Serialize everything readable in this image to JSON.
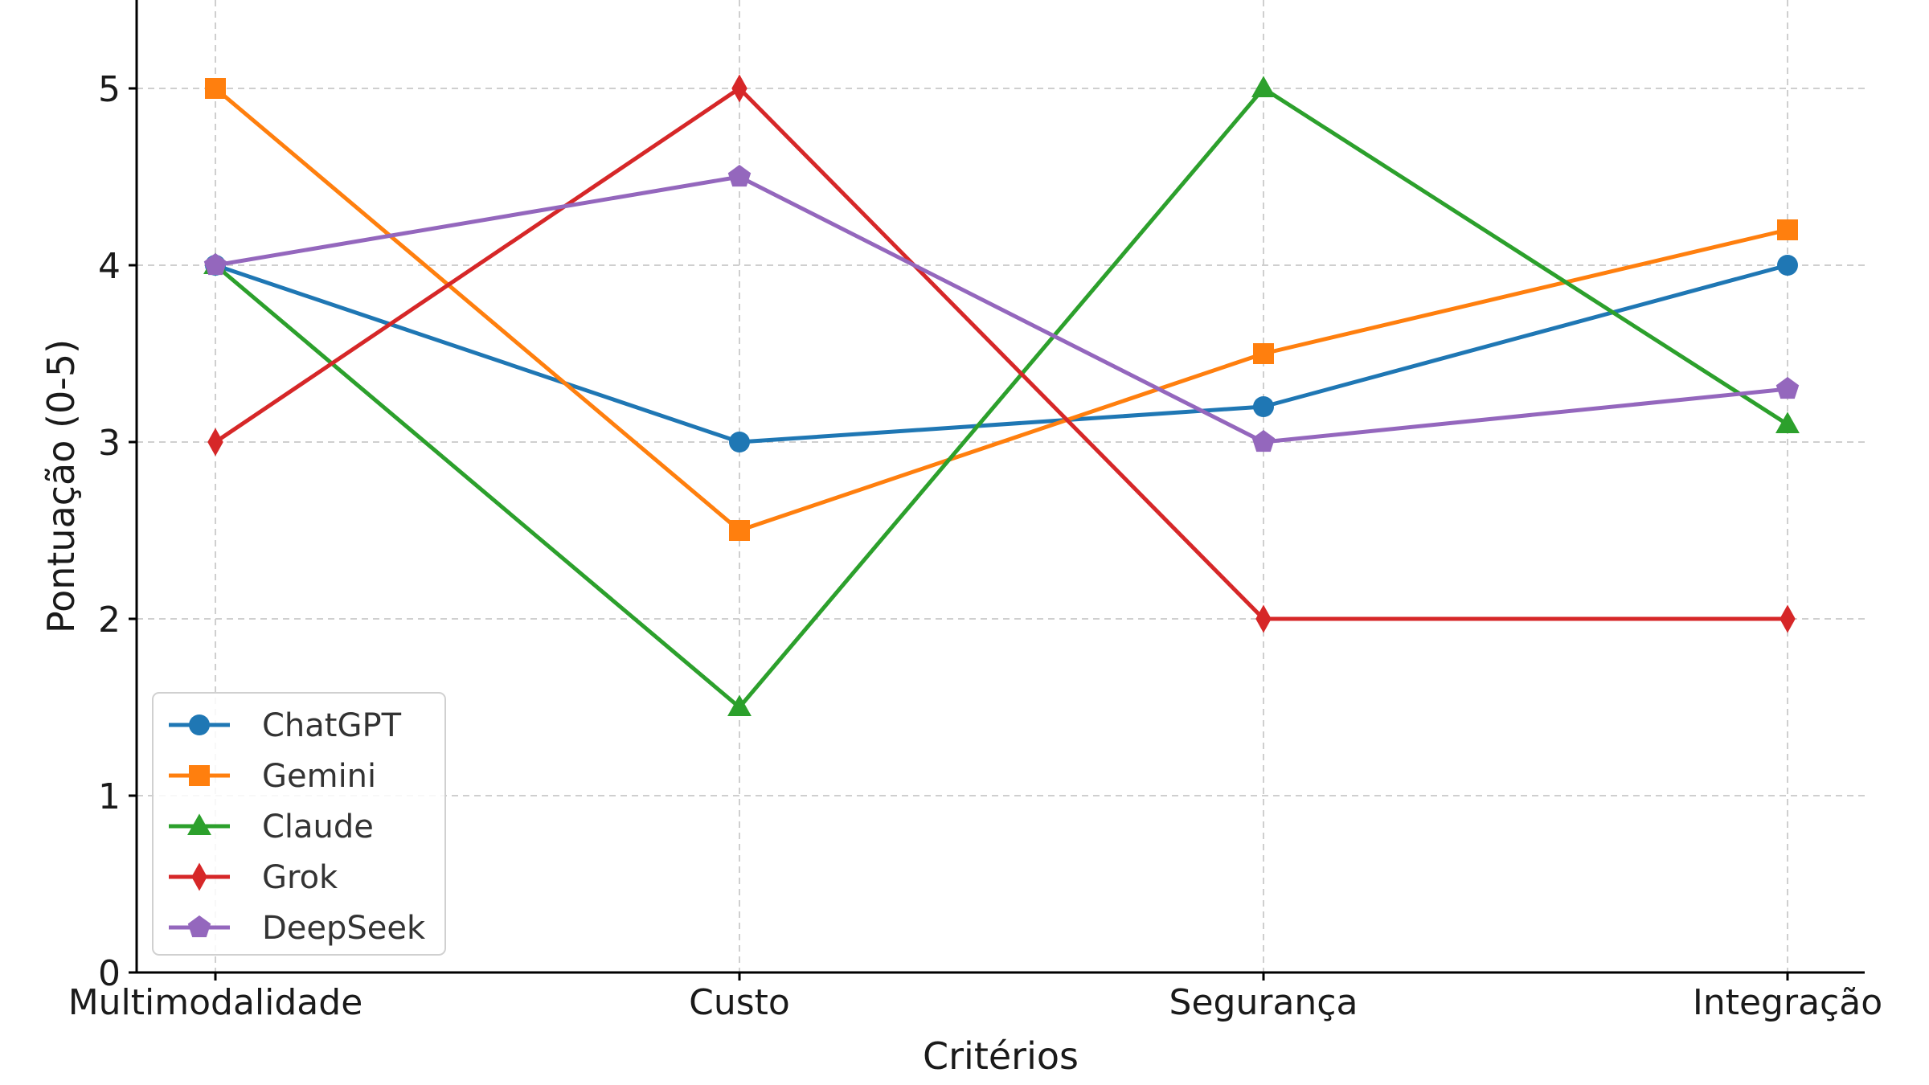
{
  "chart_data": {
    "type": "line",
    "title": "",
    "xlabel": "Critérios",
    "ylabel": "Pontuação (0-5)",
    "categories": [
      "Multimodalidade",
      "Custo",
      "Segurança",
      "Integração"
    ],
    "ylim": [
      0,
      5.5
    ],
    "yticks": [
      0,
      1,
      2,
      3,
      4,
      5
    ],
    "grid": true,
    "legend_position": "lower-left",
    "series": [
      {
        "name": "ChatGPT",
        "values": [
          4,
          3,
          3.2,
          4
        ],
        "color": "#1f77b4",
        "marker": "circle"
      },
      {
        "name": "Gemini",
        "values": [
          5,
          2.5,
          3.5,
          4.2
        ],
        "color": "#ff7f0e",
        "marker": "square"
      },
      {
        "name": "Claude",
        "values": [
          4,
          1.5,
          5,
          3.1
        ],
        "color": "#2ca02c",
        "marker": "triangle"
      },
      {
        "name": "Grok",
        "values": [
          3,
          5,
          2,
          2
        ],
        "color": "#d62728",
        "marker": "diamond"
      },
      {
        "name": "DeepSeek",
        "values": [
          4,
          4.5,
          3,
          3.3
        ],
        "color": "#9467bd",
        "marker": "pentagon"
      }
    ]
  }
}
